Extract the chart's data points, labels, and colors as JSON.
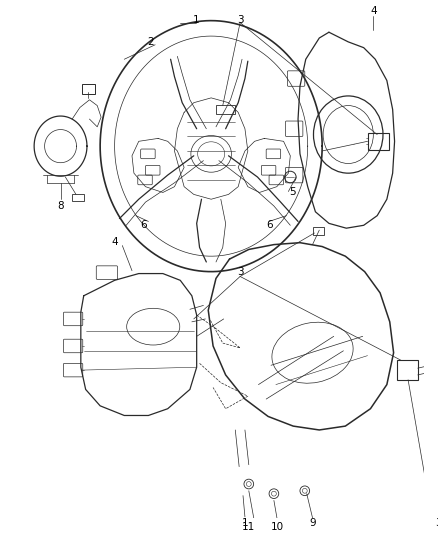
{
  "bg_color": "#ffffff",
  "line_color": "#2a2a2a",
  "label_color": "#000000",
  "fig_width": 4.38,
  "fig_height": 5.33,
  "dpi": 100,
  "lw_main": 0.9,
  "lw_thin": 0.5,
  "lw_label": 0.5,
  "font_size": 7.5
}
